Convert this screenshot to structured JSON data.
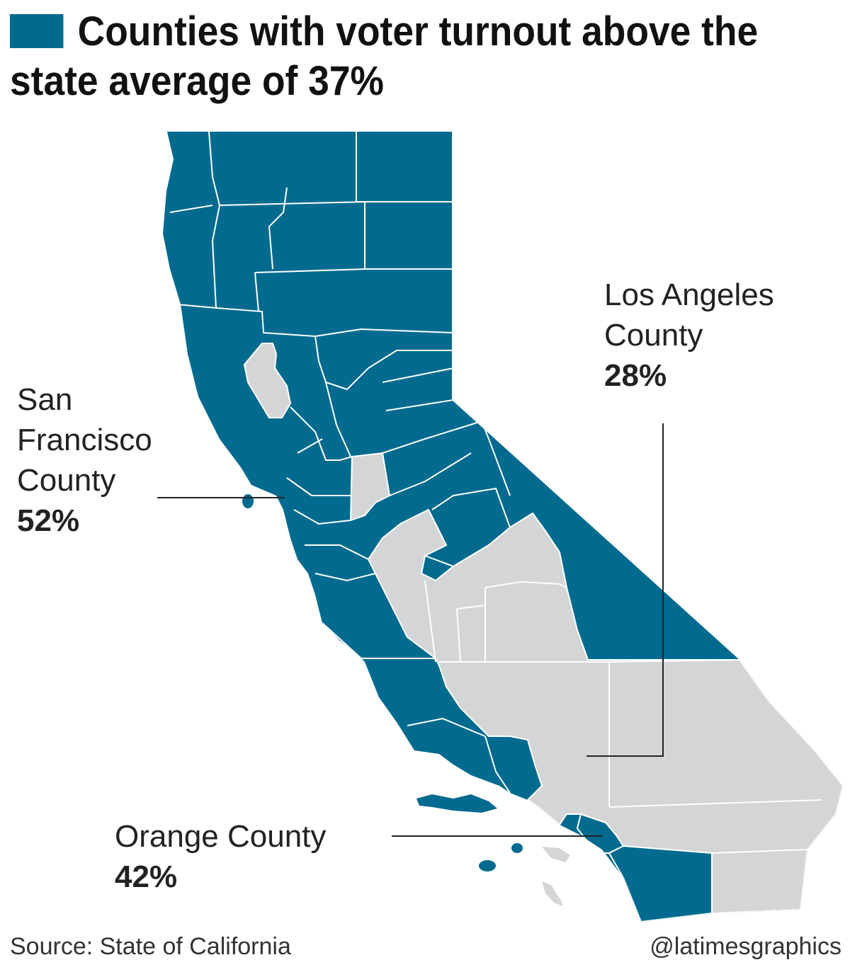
{
  "title": "Counties with voter turnout above the state average of 37%",
  "legend": {
    "above_average_color": "#006b8f",
    "below_average_color": "#d4d5d6"
  },
  "callouts": {
    "los_angeles": {
      "name_line1": "Los Angeles",
      "name_line2": "County",
      "value": "28%"
    },
    "san_francisco": {
      "name_line1": "San",
      "name_line2": "Francisco",
      "name_line3": "County",
      "value": "52%"
    },
    "orange": {
      "name": "Orange County",
      "value": "42%"
    }
  },
  "footer": {
    "source": "Source: State of California",
    "credit": "@latimesgraphics"
  }
}
